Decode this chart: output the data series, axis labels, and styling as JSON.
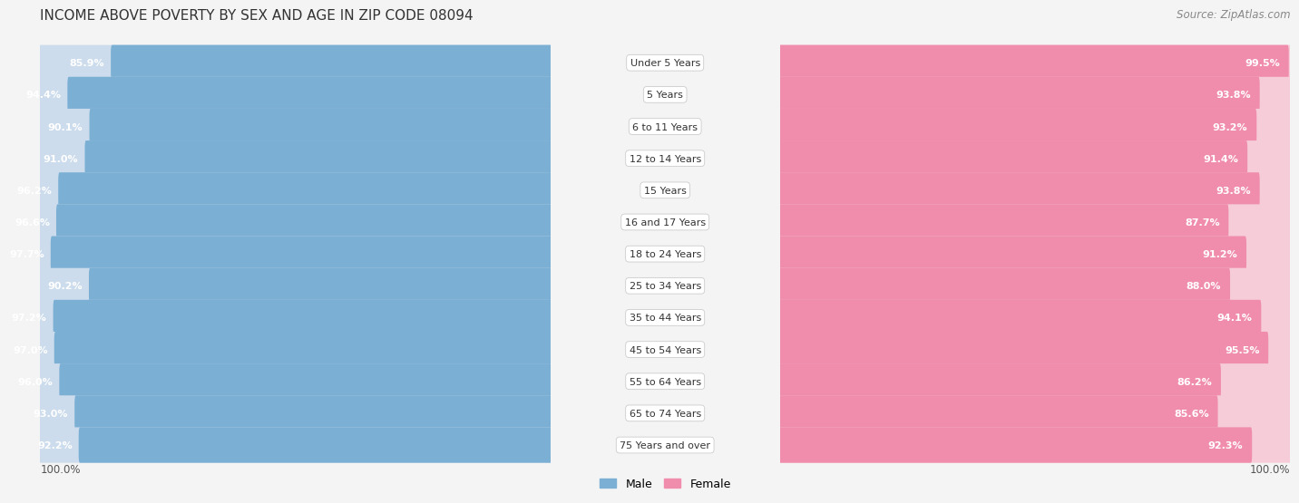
{
  "title": "INCOME ABOVE POVERTY BY SEX AND AGE IN ZIP CODE 08094",
  "source": "Source: ZipAtlas.com",
  "categories": [
    "Under 5 Years",
    "5 Years",
    "6 to 11 Years",
    "12 to 14 Years",
    "15 Years",
    "16 and 17 Years",
    "18 to 24 Years",
    "25 to 34 Years",
    "35 to 44 Years",
    "45 to 54 Years",
    "55 to 64 Years",
    "65 to 74 Years",
    "75 Years and over"
  ],
  "male_values": [
    85.9,
    94.4,
    90.1,
    91.0,
    96.2,
    96.6,
    97.7,
    90.2,
    97.2,
    97.0,
    96.0,
    93.0,
    92.2
  ],
  "female_values": [
    99.5,
    93.8,
    93.2,
    91.4,
    93.8,
    87.7,
    91.2,
    88.0,
    94.1,
    95.5,
    86.2,
    85.6,
    92.3
  ],
  "male_color": "#7bafd4",
  "male_bg_color": "#ccdcec",
  "female_color": "#f08cac",
  "female_bg_color": "#f5ccd8",
  "male_label": "Male",
  "female_label": "Female",
  "background_color": "#f4f4f4",
  "title_fontsize": 11,
  "label_fontsize": 8,
  "value_fontsize": 8,
  "source_fontsize": 8.5,
  "tick_fontsize": 8.5
}
